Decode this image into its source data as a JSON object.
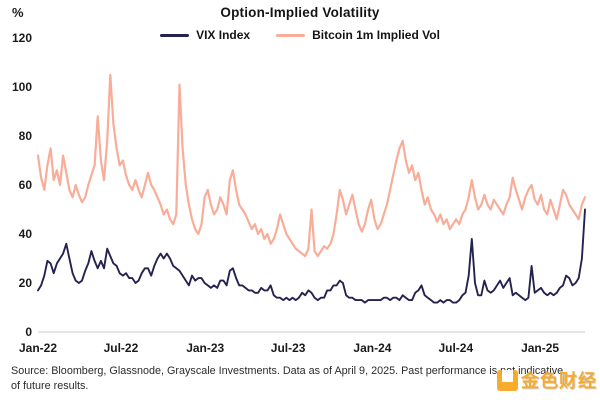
{
  "chart": {
    "title": "Option-Implied Volatility",
    "percent_label": "%"
  },
  "chart_data": {
    "type": "line",
    "title": "Option-Implied Volatility",
    "xlabel": "",
    "ylabel": "%",
    "ylim": [
      0,
      120
    ],
    "y_ticks": [
      0,
      20,
      40,
      60,
      80,
      100,
      120
    ],
    "x_ticks": [
      {
        "label": "Jan-22",
        "f": 0.0
      },
      {
        "label": "Jul-22",
        "f": 0.1516
      },
      {
        "label": "Jan-23",
        "f": 0.3057
      },
      {
        "label": "Jul-23",
        "f": 0.4573
      },
      {
        "label": "Jan-24",
        "f": 0.6114
      },
      {
        "label": "Jul-24",
        "f": 0.7638
      },
      {
        "label": "Jan-25",
        "f": 0.9179
      }
    ],
    "x_range_note": "Weekly observations, Jan 2022 through Apr 9 2025, evenly spaced",
    "grid": "baseline-only",
    "legend_position": "top-center",
    "baseline_color": "#d8d8d8",
    "series": [
      {
        "name": "VIX Index",
        "color": "#262250",
        "values": [
          17,
          19,
          23,
          29,
          28,
          24,
          28,
          30,
          32,
          36,
          30,
          24,
          21,
          20,
          21,
          25,
          28,
          33,
          29,
          26,
          29,
          26,
          34,
          31,
          28,
          27,
          24,
          23,
          24,
          22,
          22,
          20,
          21,
          24,
          26,
          26,
          23,
          27,
          30,
          32,
          30,
          32,
          30,
          27,
          26,
          25,
          23,
          21,
          19,
          23,
          21,
          22,
          22,
          20,
          19,
          18,
          19,
          18,
          21,
          21,
          19,
          25,
          26,
          22,
          19,
          19,
          18,
          17,
          17,
          16,
          16,
          18,
          17,
          17,
          19,
          15,
          14,
          14,
          13,
          14,
          13,
          14,
          13,
          14,
          16,
          15,
          17,
          16,
          14,
          13,
          14,
          14,
          17,
          17,
          19,
          19,
          21,
          20,
          15,
          14,
          14,
          13,
          13,
          13,
          12,
          13,
          13,
          13,
          13,
          13,
          14,
          14,
          13,
          14,
          14,
          13,
          15,
          14,
          13,
          13,
          16,
          17,
          19,
          15,
          14,
          13,
          12,
          12,
          13,
          12,
          13,
          13,
          12,
          12,
          13,
          15,
          16,
          23,
          38,
          20,
          15,
          15,
          21,
          17,
          16,
          17,
          19,
          21,
          18,
          20,
          22,
          15,
          16,
          15,
          14,
          13,
          14,
          27,
          16,
          17,
          18,
          16,
          15,
          16,
          15,
          16,
          18,
          19,
          23,
          22,
          19,
          20,
          22,
          30,
          50
        ]
      },
      {
        "name": "Bitcoin 1m Implied Vol",
        "color": "#f8ad99",
        "values": [
          72,
          63,
          58,
          68,
          75,
          62,
          66,
          60,
          72,
          65,
          58,
          55,
          60,
          56,
          53,
          55,
          60,
          64,
          68,
          88,
          70,
          62,
          78,
          105,
          85,
          75,
          68,
          70,
          64,
          60,
          58,
          62,
          58,
          55,
          60,
          65,
          60,
          58,
          55,
          52,
          48,
          50,
          46,
          44,
          48,
          101,
          75,
          60,
          52,
          46,
          42,
          40,
          44,
          55,
          58,
          52,
          48,
          50,
          55,
          52,
          48,
          62,
          66,
          58,
          52,
          50,
          48,
          45,
          42,
          44,
          40,
          42,
          38,
          40,
          36,
          38,
          42,
          48,
          44,
          40,
          38,
          36,
          34,
          33,
          32,
          31,
          34,
          50,
          33,
          31,
          33,
          35,
          34,
          36,
          40,
          48,
          58,
          54,
          48,
          52,
          56,
          50,
          44,
          41,
          44,
          50,
          54,
          46,
          42,
          44,
          48,
          52,
          58,
          64,
          70,
          75,
          78,
          70,
          65,
          68,
          62,
          65,
          58,
          52,
          55,
          50,
          48,
          45,
          48,
          44,
          46,
          42,
          44,
          46,
          44,
          48,
          50,
          55,
          62,
          55,
          50,
          52,
          56,
          52,
          50,
          54,
          52,
          50,
          48,
          52,
          55,
          63,
          58,
          54,
          50,
          55,
          58,
          60,
          54,
          52,
          56,
          50,
          48,
          54,
          50,
          46,
          52,
          58,
          56,
          52,
          50,
          48,
          46,
          52,
          55
        ]
      }
    ]
  },
  "footer": {
    "source": "Source: Bloomberg, Glassnode, Grayscale Investments. Data as of April 9, 2025. Past performance is not indicative of future results."
  },
  "watermark": {
    "text": "金色财经"
  }
}
